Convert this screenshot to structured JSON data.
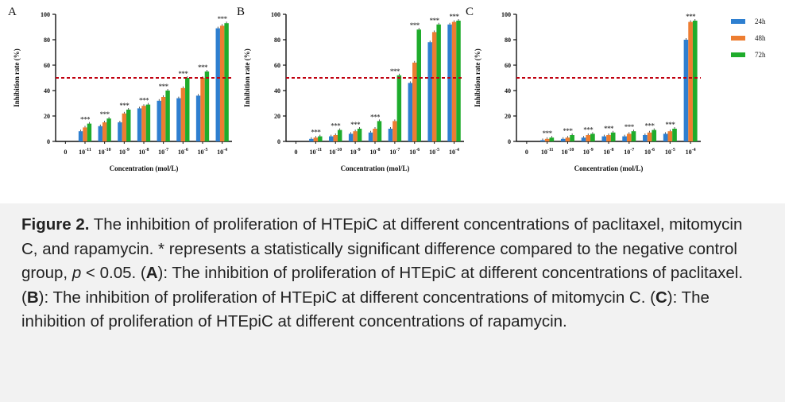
{
  "legend": [
    {
      "name": "24h",
      "color": "#2e7fd0"
    },
    {
      "name": "48h",
      "color": "#ed7d31"
    },
    {
      "name": "72h",
      "color": "#1fac2b"
    }
  ],
  "threshold": {
    "value": 50,
    "color": "#c0000f"
  },
  "chart_data": [
    {
      "type": "bar",
      "panel": "A",
      "title": "",
      "xlabel": "Concentration (mol/L)",
      "ylabel": "Inhibition rate (%)",
      "ylim": [
        0,
        100
      ],
      "yticks": [
        "0",
        "20",
        "40",
        "60",
        "80",
        "100"
      ],
      "categories": [
        "0",
        "10-11",
        "10-10",
        "10-9",
        "10-8",
        "10-7",
        "10-6",
        "10-5",
        "10-4"
      ],
      "series": [
        {
          "name": "24h",
          "values": [
            0,
            8,
            12,
            15,
            26,
            32,
            34,
            36,
            89
          ]
        },
        {
          "name": "48h",
          "values": [
            0,
            11,
            15,
            22,
            28,
            35,
            42,
            50,
            91
          ]
        },
        {
          "name": "72h",
          "values": [
            0,
            14,
            18,
            25,
            29,
            40,
            50,
            55,
            93
          ]
        }
      ],
      "significant": [
        "",
        "***",
        "***",
        "***",
        "***",
        "***",
        "***",
        "***",
        "***"
      ]
    },
    {
      "type": "bar",
      "panel": "B",
      "title": "",
      "xlabel": "Concentration (mol/L)",
      "ylabel": "Inhibition rate (%)",
      "ylim": [
        0,
        100
      ],
      "yticks": [
        "0",
        "20",
        "40",
        "60",
        "80",
        "100"
      ],
      "categories": [
        "0",
        "10-11",
        "10-10",
        "10-9",
        "10-8",
        "10-7",
        "10-6",
        "10-5",
        "10-4"
      ],
      "series": [
        {
          "name": "24h",
          "values": [
            0,
            2,
            4,
            6,
            7,
            10,
            46,
            78,
            92
          ]
        },
        {
          "name": "48h",
          "values": [
            0,
            3,
            5,
            8,
            10,
            16,
            62,
            86,
            94
          ]
        },
        {
          "name": "72h",
          "values": [
            0,
            4,
            9,
            10,
            16,
            52,
            88,
            92,
            95
          ]
        }
      ],
      "significant": [
        "",
        "***",
        "***",
        "***",
        "***",
        "***",
        "***",
        "***",
        "***"
      ]
    },
    {
      "type": "bar",
      "panel": "C",
      "title": "",
      "xlabel": "Concentration (mol/L)",
      "ylabel": "Inhibition rate (%)",
      "ylim": [
        0,
        100
      ],
      "yticks": [
        "0",
        "20",
        "40",
        "60",
        "80",
        "100"
      ],
      "categories": [
        "0",
        "10-11",
        "10-10",
        "10-9",
        "10-8",
        "10-7",
        "10-6",
        "10-5",
        "10-4"
      ],
      "series": [
        {
          "name": "24h",
          "values": [
            0,
            1,
            2,
            3,
            4,
            4,
            5,
            6,
            80
          ]
        },
        {
          "name": "48h",
          "values": [
            0,
            2,
            3,
            5,
            5,
            6,
            7,
            8,
            94
          ]
        },
        {
          "name": "72h",
          "values": [
            0,
            3,
            5,
            6,
            7,
            8,
            9,
            10,
            95
          ]
        }
      ],
      "significant": [
        "",
        "***",
        "***",
        "***",
        "***",
        "***",
        "***",
        "***",
        "***"
      ]
    }
  ],
  "caption": {
    "label": "Figure 2.",
    "p1": " The inhibition of proliferation of HTEpiC at different concentrations of paclitaxel, mitomycin C, and rapamycin. * represents a statistically significant difference compared to the negative control group, ",
    "p_var": "p",
    "p2": " < 0.05. (",
    "a": "A",
    "p3": "): The inhibition of proliferation of HTEpiC at different concentrations of paclitaxel. (",
    "b": "B",
    "p4": "): The inhibition of proliferation of HTEpiC at different concentrations of mitomycin C. (",
    "c": "C",
    "p5": "): The inhibition of proliferation of HTEpiC at different concentrations of rapamycin."
  }
}
